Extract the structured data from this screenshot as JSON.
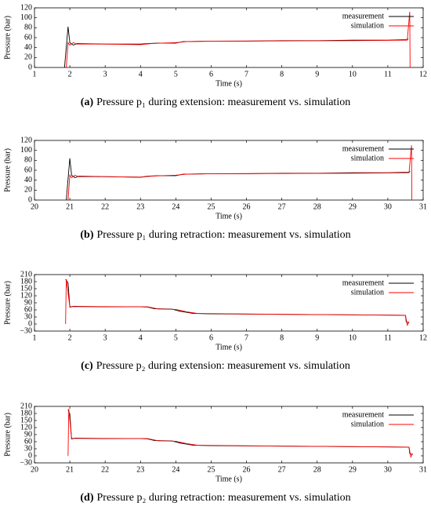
{
  "chart_data": [
    {
      "type": "line",
      "caption_label": "(a)",
      "caption": "Pressure p₁ during extension: measurement vs. simulation",
      "xlabel": "Time (s)",
      "ylabel": "Pressure (bar)",
      "xlim": [
        1,
        12
      ],
      "xticks": [
        1,
        2,
        3,
        4,
        5,
        6,
        7,
        8,
        9,
        10,
        11,
        12
      ],
      "ylim": [
        0,
        120
      ],
      "yticks": [
        0,
        20,
        40,
        60,
        80,
        100,
        120
      ],
      "legend": "upper right",
      "series": [
        {
          "name": "measurement",
          "color": "#000000",
          "x": [
            1.85,
            1.95,
            2.0,
            2.1,
            2.2,
            3,
            4,
            4.2,
            4.5,
            5,
            5.2,
            6,
            7,
            8,
            9,
            10,
            11,
            11.55,
            11.58
          ],
          "values": [
            0,
            82,
            50,
            45,
            48,
            47,
            47,
            48,
            49,
            49,
            52,
            53,
            53,
            54,
            54,
            55,
            55,
            56,
            58
          ]
        },
        {
          "name": "simulation",
          "color": "#ff0000",
          "x": [
            1.9,
            1.95,
            2.0,
            2.1,
            2.2,
            3,
            4,
            4.3,
            4.6,
            5,
            5.3,
            6,
            8,
            10,
            11.55,
            11.62,
            11.63
          ],
          "values": [
            0,
            50,
            45,
            50,
            47,
            47,
            46,
            48,
            49,
            50,
            52,
            53,
            53.5,
            54,
            55,
            112,
            0
          ]
        }
      ]
    },
    {
      "type": "line",
      "caption_label": "(b)",
      "caption": "Pressure p₁ during retraction: measurement vs. simulation",
      "xlabel": "Time (s)",
      "ylabel": "Pressure (bar)",
      "xlim": [
        20,
        31
      ],
      "xticks": [
        20,
        21,
        22,
        23,
        24,
        25,
        26,
        27,
        28,
        29,
        30,
        31
      ],
      "ylim": [
        0,
        120
      ],
      "yticks": [
        0,
        20,
        40,
        60,
        80,
        100,
        120
      ],
      "legend": "upper right",
      "series": [
        {
          "name": "measurement",
          "color": "#000000",
          "x": [
            20.9,
            21.0,
            21.05,
            21.15,
            21.25,
            22,
            23,
            23.2,
            23.5,
            24,
            24.2,
            25,
            26,
            27,
            28,
            29,
            30,
            30.6,
            30.63
          ],
          "values": [
            0,
            84,
            50,
            45,
            48,
            47,
            46,
            48,
            49,
            49,
            52,
            53,
            53,
            54,
            54,
            55,
            55,
            56,
            58
          ]
        },
        {
          "name": "simulation",
          "color": "#ff0000",
          "x": [
            20.95,
            21.0,
            21.05,
            21.15,
            21.25,
            22,
            23,
            23.3,
            23.6,
            24,
            24.3,
            25,
            27,
            29,
            30.6,
            30.67,
            30.68
          ],
          "values": [
            0,
            50,
            45,
            50,
            47,
            47,
            46,
            48,
            49,
            50,
            52,
            53,
            53.5,
            54,
            55,
            110,
            0
          ]
        }
      ]
    },
    {
      "type": "line",
      "caption_label": "(c)",
      "caption": "Pressure p₂ during extension: measurement vs. simulation",
      "xlabel": "Time (s)",
      "ylabel": "Pressure (bar)",
      "xlim": [
        1,
        12
      ],
      "xticks": [
        1,
        2,
        3,
        4,
        5,
        6,
        7,
        8,
        9,
        10,
        11,
        12
      ],
      "ylim": [
        -30,
        210
      ],
      "yticks": [
        {
          "value": -30,
          "label": "−30"
        },
        0,
        30,
        60,
        90,
        120,
        150,
        180,
        210
      ],
      "legend": "upper right",
      "series": [
        {
          "name": "measurement",
          "color": "#000000",
          "x": [
            1.88,
            1.95,
            2.0,
            2.1,
            3,
            4,
            4.2,
            4.4,
            4.9,
            5.1,
            5.5,
            6,
            8,
            10,
            11.5,
            11.52,
            11.6
          ],
          "values": [
            190,
            175,
            72,
            75,
            73,
            73,
            72,
            65,
            63,
            55,
            45,
            43,
            41,
            39,
            37,
            10,
            5
          ]
        },
        {
          "name": "simulation",
          "color": "#ff0000",
          "x": [
            1.88,
            1.9,
            2.0,
            3,
            4.2,
            4.5,
            5,
            5.3,
            5.6,
            8,
            10,
            11.5,
            11.52,
            11.55,
            11.6
          ],
          "values": [
            0,
            190,
            74,
            74,
            73,
            64,
            62,
            52,
            45,
            41,
            39,
            37,
            20,
            -5,
            10
          ]
        }
      ]
    },
    {
      "type": "line",
      "caption_label": "(d)",
      "caption": "Pressure p₂ during retraction: measurement vs. simulation",
      "xlabel": "Time (s)",
      "ylabel": "Pressure (bar)",
      "xlim": [
        20,
        31
      ],
      "xticks": [
        20,
        21,
        22,
        23,
        24,
        25,
        26,
        27,
        28,
        29,
        30,
        31
      ],
      "ylim": [
        -30,
        210
      ],
      "yticks": [
        {
          "value": -30,
          "label": "−30"
        },
        0,
        30,
        60,
        90,
        120,
        150,
        180,
        210
      ],
      "legend": "upper right",
      "series": [
        {
          "name": "measurement",
          "color": "#000000",
          "x": [
            20.95,
            21.0,
            21.05,
            21.15,
            22,
            23,
            23.2,
            23.4,
            23.9,
            24.1,
            24.5,
            25,
            27,
            29,
            30.6,
            30.62,
            30.7
          ],
          "values": [
            195,
            178,
            72,
            75,
            73,
            73,
            72,
            65,
            63,
            55,
            45,
            43,
            41,
            39,
            37,
            10,
            5
          ]
        },
        {
          "name": "simulation",
          "color": "#ff0000",
          "x": [
            20.95,
            20.97,
            21.05,
            22,
            23.2,
            23.5,
            24,
            24.3,
            24.6,
            27,
            29,
            30.6,
            30.62,
            30.65,
            30.7
          ],
          "values": [
            0,
            200,
            74,
            74,
            73,
            64,
            62,
            52,
            45,
            41,
            39,
            37,
            20,
            -5,
            10
          ]
        }
      ]
    }
  ]
}
